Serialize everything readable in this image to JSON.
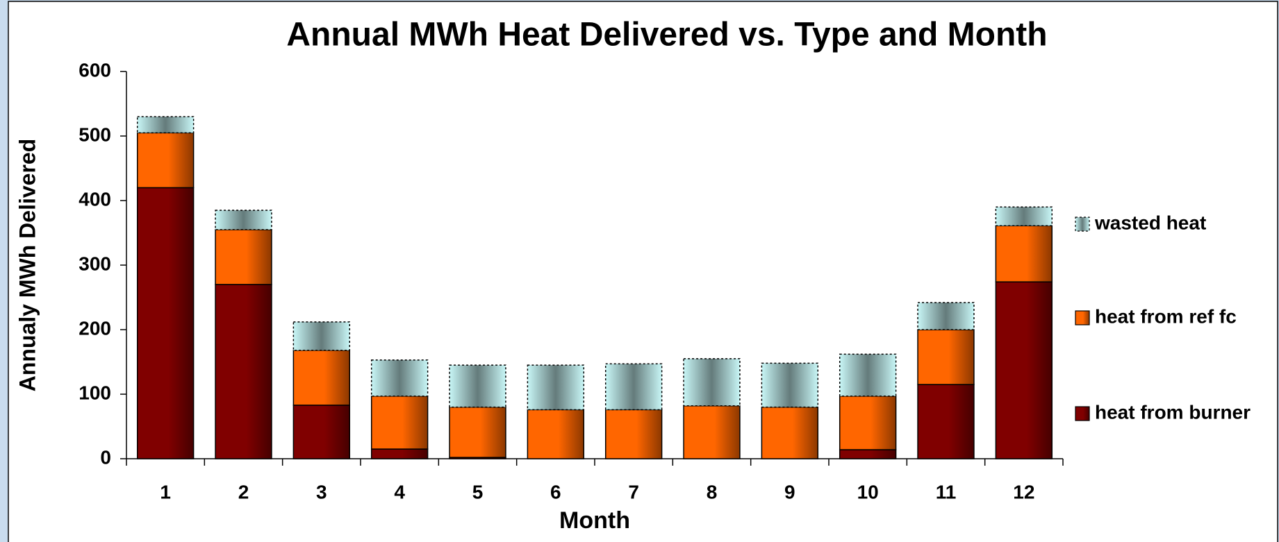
{
  "chart_data": {
    "type": "stacked_bar",
    "title": "Annual MWh Heat Delivered vs. Type and Month",
    "x_label": "Month",
    "y_label": "Annualy MWh Delivered",
    "categories": [
      "1",
      "2",
      "3",
      "4",
      "5",
      "6",
      "7",
      "8",
      "9",
      "10",
      "11",
      "12"
    ],
    "series": [
      {
        "name": "heat from burner",
        "color": "#800000",
        "values": [
          420,
          270,
          83,
          15,
          2,
          0,
          0,
          0,
          0,
          14,
          115,
          274
        ]
      },
      {
        "name": "heat from ref fc",
        "color": "#ff6600",
        "values": [
          85,
          85,
          85,
          82,
          78,
          76,
          76,
          82,
          80,
          83,
          85,
          87
        ]
      },
      {
        "name": "wasted heat",
        "color": "#c8f6f6",
        "values": [
          25,
          30,
          44,
          56,
          65,
          69,
          71,
          73,
          68,
          65,
          42,
          29
        ]
      }
    ],
    "ylim": [
      0,
      600
    ],
    "yticks": [
      0,
      100,
      200,
      300,
      400,
      500,
      600
    ],
    "legend": "right"
  }
}
